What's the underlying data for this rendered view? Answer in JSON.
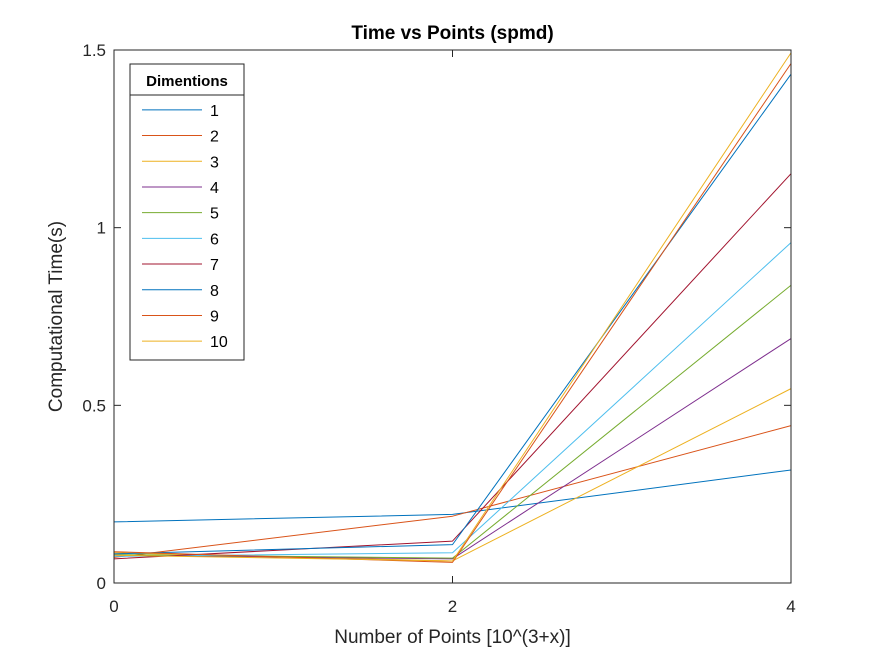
{
  "chart_data": {
    "type": "line",
    "title": "Time vs Points (spmd)",
    "xlabel": "Number of Points [10^(3+x)]",
    "ylabel": "Computational Time(s)",
    "xlim": [
      0,
      4
    ],
    "ylim": [
      0,
      1.5
    ],
    "xticks": [
      0,
      2,
      4
    ],
    "xtick_labels": [
      "0",
      "2",
      "4"
    ],
    "yticks": [
      0,
      0.5,
      1,
      1.5
    ],
    "ytick_labels": [
      "0",
      "0.5",
      "1",
      "1.5"
    ],
    "grid": false,
    "legend": {
      "title": "Dimentions",
      "location": "top-left"
    },
    "x": [
      0,
      2,
      4
    ],
    "series": [
      {
        "name": "1",
        "color": "#0072BD",
        "values": [
          0.172,
          0.193,
          0.318
        ]
      },
      {
        "name": "2",
        "color": "#D95319",
        "values": [
          0.072,
          0.188,
          0.443
        ]
      },
      {
        "name": "3",
        "color": "#EDB120",
        "values": [
          0.085,
          0.062,
          0.547
        ]
      },
      {
        "name": "4",
        "color": "#7E2F8E",
        "values": [
          0.078,
          0.068,
          0.688
        ]
      },
      {
        "name": "5",
        "color": "#77AC30",
        "values": [
          0.08,
          0.07,
          0.838
        ]
      },
      {
        "name": "6",
        "color": "#4DBEEE",
        "values": [
          0.075,
          0.085,
          0.958
        ]
      },
      {
        "name": "7",
        "color": "#A2142F",
        "values": [
          0.068,
          0.118,
          1.152
        ]
      },
      {
        "name": "8",
        "color": "#0072BD",
        "values": [
          0.082,
          0.108,
          1.432
        ]
      },
      {
        "name": "9",
        "color": "#D95319",
        "values": [
          0.088,
          0.058,
          1.462
        ]
      },
      {
        "name": "10",
        "color": "#EDB120",
        "values": [
          0.078,
          0.062,
          1.492
        ]
      }
    ]
  }
}
